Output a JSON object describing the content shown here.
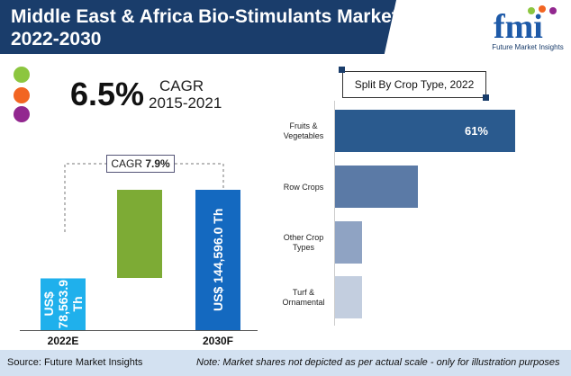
{
  "header": {
    "title": "Middle East & Africa Bio-Stimulants Market 2022-2030",
    "logo_text": "fmi",
    "logo_subtitle": "Future Market Insights"
  },
  "legend_dots": [
    "#8cc63f",
    "#f26522",
    "#92278f"
  ],
  "cagr_hist": {
    "value": "6.5%",
    "label": "CAGR",
    "period": "2015-2021"
  },
  "chart_data": [
    {
      "type": "bar",
      "categories": [
        "2022E",
        "2030F"
      ],
      "values": [
        78563.9,
        144596.0
      ],
      "value_labels": [
        "US$ 78,563.9 Th",
        "US$ 144,596.0 Th"
      ],
      "colors": [
        "#1fb0ec",
        "#1469c0"
      ],
      "increment_color": "#7dab35",
      "annotation": "CAGR",
      "annotation_value": "7.9%"
    },
    {
      "type": "bar",
      "orientation": "horizontal",
      "title": "Split By Crop Type, 2022",
      "categories": [
        "Fruits & Vegetables",
        "Row Crops",
        "Other Crop Types",
        "Turf & Ornamental"
      ],
      "values": [
        61,
        28,
        7,
        4
      ],
      "data_labels": [
        "61%",
        "",
        "",
        ""
      ],
      "colors": [
        "#2a5a8e",
        "#5b7aa6",
        "#8fa3c3",
        "#c3cedf"
      ]
    }
  ],
  "footer": {
    "source": "Source: Future Market Insights",
    "note": "Note: Market shares not depicted as per actual scale - only for illustration purposes"
  }
}
